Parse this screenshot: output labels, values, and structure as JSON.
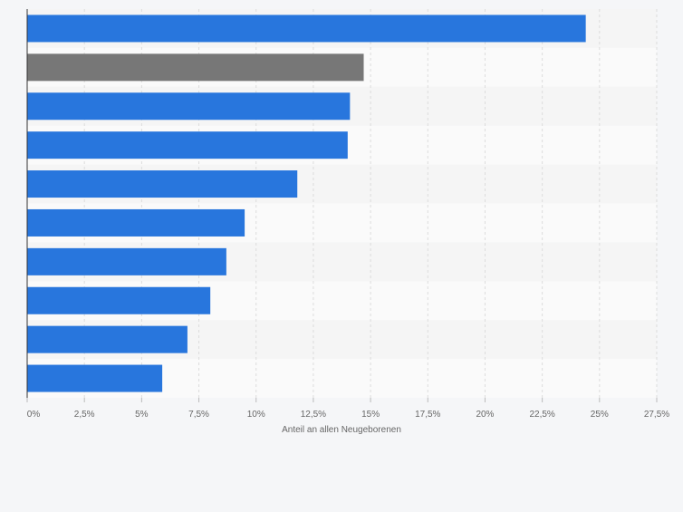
{
  "chart_data": {
    "type": "bar",
    "orientation": "horizontal",
    "categories": [
      "",
      "",
      "",
      "",
      "",
      "",
      "",
      "",
      "",
      ""
    ],
    "values": [
      24.4,
      14.7,
      14.1,
      14.0,
      11.8,
      9.5,
      8.7,
      8.0,
      7.0,
      5.9
    ],
    "highlight_index": 1,
    "title": "",
    "xlabel": "Anteil an allen Neugeborenen",
    "ylabel": "",
    "xlim": [
      0,
      27.5
    ],
    "x_ticks": [
      0,
      2.5,
      5,
      7.5,
      10,
      12.5,
      15,
      17.5,
      20,
      22.5,
      25,
      27.5
    ],
    "x_tick_labels": [
      "0%",
      "2,5%",
      "5%",
      "7,5%",
      "10%",
      "12,5%",
      "15%",
      "17,5%",
      "20%",
      "22,5%",
      "25%",
      "27,5%"
    ],
    "grid": true,
    "colors": {
      "bar": "#2876dd",
      "highlight": "#777777",
      "band_a": "#f5f5f5",
      "band_b": "#fafafa",
      "grid": "#dcdcdc",
      "axis": "#333333",
      "tick_text": "#666666"
    }
  }
}
